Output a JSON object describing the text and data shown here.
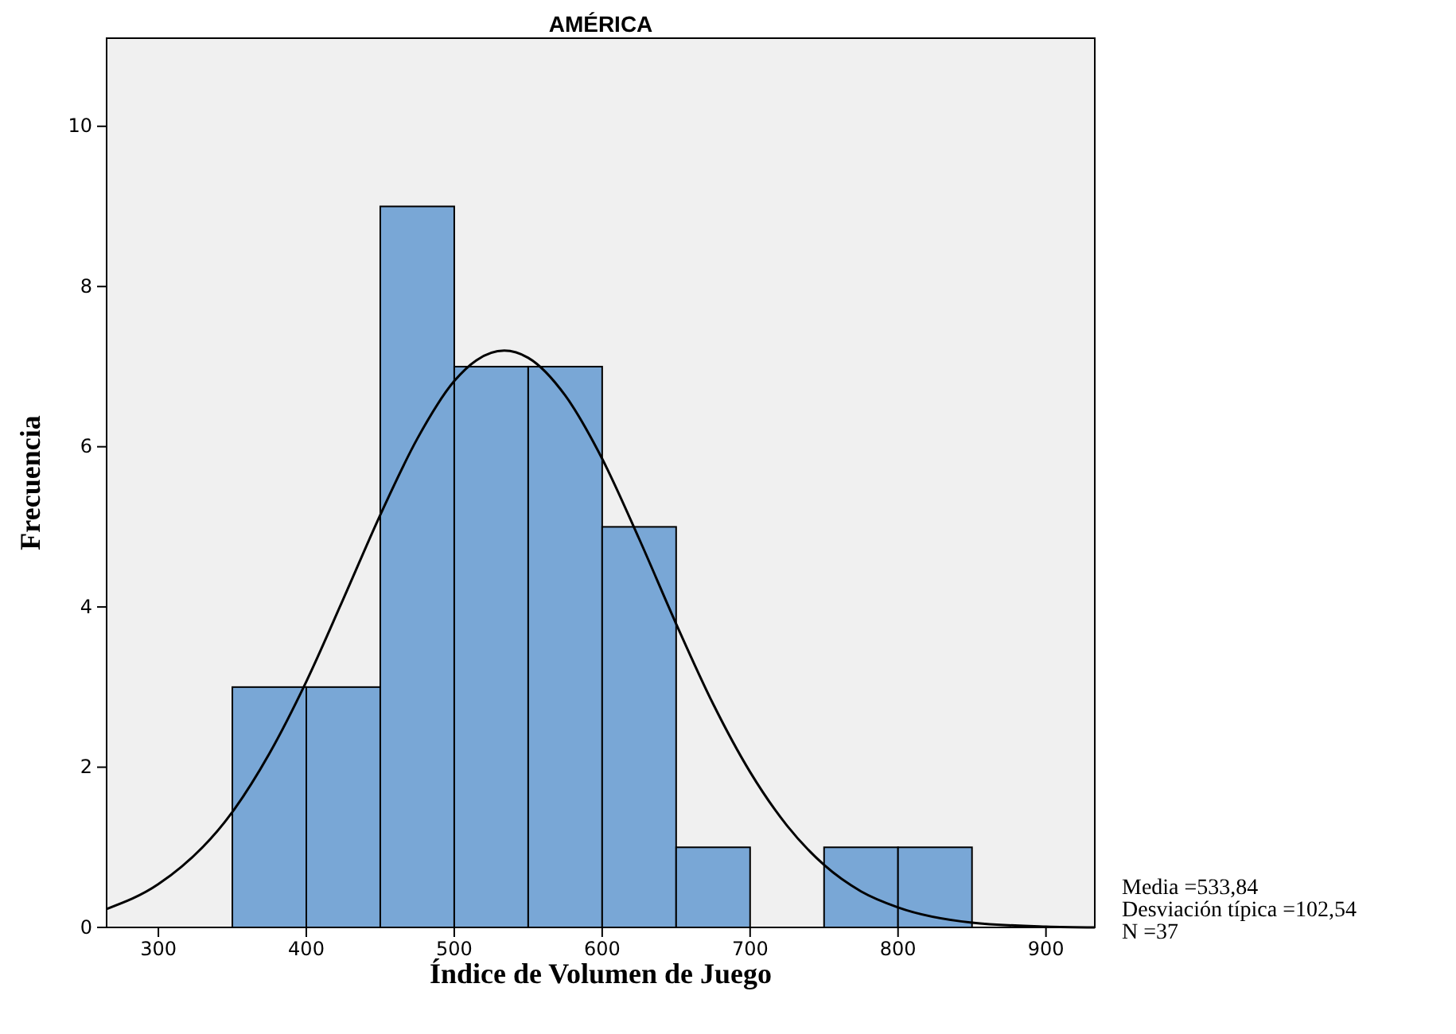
{
  "chart_data": {
    "type": "histogram",
    "title": "AMÉRICA",
    "xlabel": "Índice de Volumen de Juego",
    "ylabel": "Frecuencia",
    "bins": [
      350,
      400,
      450,
      500,
      550,
      600,
      650,
      700,
      750,
      800,
      850
    ],
    "values": [
      3,
      3,
      9,
      7,
      7,
      5,
      1,
      0,
      1,
      1
    ],
    "color": "#79a7d6",
    "series": [
      {
        "type": "line",
        "color": "#000000",
        "x": [
          265,
          300,
          350,
          375,
          400,
          425,
          450,
          475,
          500,
          515,
          533.84,
          550,
          575,
          600,
          625,
          650,
          675,
          700,
          725,
          750,
          775,
          800,
          850,
          900,
          933
        ],
        "values": [
          0.23,
          0.54,
          1.44,
          2.17,
          3.07,
          4.1,
          5.15,
          6.1,
          6.82,
          7.08,
          7.2,
          7.11,
          6.64,
          5.85,
          4.85,
          3.79,
          2.79,
          1.94,
          1.27,
          0.78,
          0.45,
          0.25,
          0.06,
          0.01,
          0
        ]
      }
    ],
    "xlim": [
      265,
      933
    ],
    "ylim": [
      0,
      11.1
    ],
    "xticks": [
      300,
      400,
      500,
      600,
      700,
      800,
      900
    ],
    "yticks": [
      0,
      2,
      4,
      6,
      8,
      10
    ],
    "grid": false,
    "marker": "none",
    "line_style": "solid",
    "annotations": [
      "Media =533,84",
      "Desviación típica =102,54",
      "N =37"
    ]
  }
}
